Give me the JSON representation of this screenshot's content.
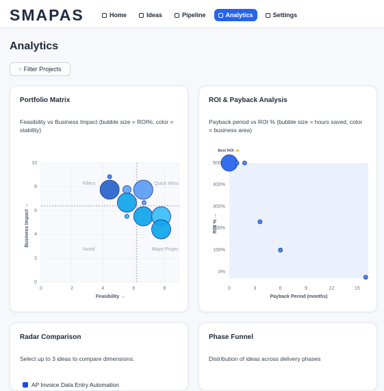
{
  "header": {
    "logo": "SMAPAS",
    "nav": [
      {
        "label": "Home",
        "active": false
      },
      {
        "label": "Ideas",
        "active": false
      },
      {
        "label": "Pipeline",
        "active": false
      },
      {
        "label": "Analytics",
        "active": true
      },
      {
        "label": "Settings",
        "active": false
      }
    ]
  },
  "page": {
    "title": "Analytics",
    "filter_button": "Filter Projects"
  },
  "chart_data": [
    {
      "type": "bubble",
      "title": "Portfolio Matrix",
      "subtitle": "Feasibility vs Business Impact (bubble size = ROI%, color = stability)",
      "xlabel": "Feasibility →",
      "ylabel": "Business Impact →",
      "xlim": [
        0,
        9
      ],
      "ylim": [
        0,
        10
      ],
      "xticks": [
        0,
        2,
        4,
        6,
        8
      ],
      "yticks": [
        0,
        2,
        4,
        6,
        8,
        10
      ],
      "grid": true,
      "background": "#f7f9fc",
      "x_divider": 6.2,
      "y_divider": 6.4,
      "quadrant_labels": [
        "Fillers",
        "Quick Wins",
        "Avoid",
        "Major Projec"
      ],
      "x": [
        4.44,
        4.44,
        5.56,
        6.62,
        5.56,
        6.67,
        5.56,
        6.62,
        7.78,
        7.78
      ],
      "values": [
        8.85,
        7.76,
        7.76,
        7.76,
        6.67,
        6.67,
        5.52,
        5.52,
        5.52,
        4.43
      ],
      "sizes": [
        23,
        500,
        92,
        500,
        500,
        23,
        23,
        500,
        500,
        500
      ],
      "colors": [
        "#3b82f6",
        "#2563c9",
        "#60a5fa",
        "#5b9cf5",
        "#0ea5e9",
        "#60a5fa",
        "#38bdf8",
        "#0ea5e9",
        "#38bdf8",
        "#0ea5e9"
      ]
    },
    {
      "type": "bubble",
      "title": "ROI & Payback Analysis",
      "subtitle": "Payback period vs ROI % (bubble size = hours saved, color = business area)",
      "xlabel": "Payback Period (months)",
      "ylabel": "ROI % →",
      "xlim": [
        0,
        16.3
      ],
      "ylim": [
        -30,
        500
      ],
      "xticks": [
        0,
        3,
        6,
        9,
        12,
        15
      ],
      "yticks": [
        {
          "value": 0,
          "label": "0%"
        },
        {
          "value": 100,
          "label": "100%"
        },
        {
          "value": 200,
          "label": "200%"
        },
        {
          "value": 300,
          "label": "300%"
        },
        {
          "value": 400,
          "label": "400%"
        },
        {
          "value": 500,
          "label": "500%"
        }
      ],
      "grid": false,
      "background": "#eaf1fd",
      "annotation": "Best ROI",
      "x": [
        0,
        0.9,
        1.8,
        3.6,
        6,
        16
      ],
      "values": [
        500,
        500,
        500,
        230,
        100,
        -25
      ],
      "sizes": [
        400,
        25,
        25,
        25,
        25,
        25
      ],
      "colors": [
        "#2563eb",
        "#3b82f6",
        "#3b82f6",
        "#3b82f6",
        "#3b82f6",
        "#3b82f6"
      ]
    }
  ],
  "cards": [
    {
      "title": "Radar Comparison",
      "text": "Select up to 3 ideas to compare dimensions:",
      "items": [
        "AP Invoice Data Entry Automation"
      ]
    },
    {
      "title": "Phase Funnel",
      "text": "Distribution of ideas across delivery phases"
    }
  ]
}
